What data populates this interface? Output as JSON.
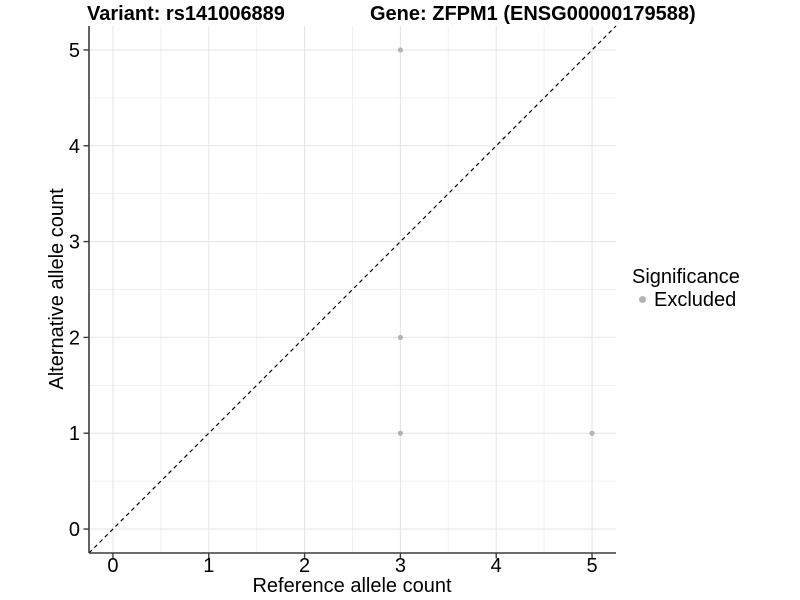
{
  "chart_data": {
    "type": "scatter",
    "title_left": "Variant: rs141006889",
    "title_right": "Gene: ZFPM1 (ENSG00000179588)",
    "xlabel": "Reference allele count",
    "ylabel": "Alternative allele count",
    "xlim": [
      -0.25,
      5.25
    ],
    "ylim": [
      -0.25,
      5.25
    ],
    "x_ticks": [
      0,
      1,
      2,
      3,
      4,
      5
    ],
    "y_ticks": [
      0,
      1,
      2,
      3,
      4,
      5
    ],
    "grid": "major and minor gridlines, light gray on white panel",
    "legend_position": "right",
    "series": [
      {
        "name": "Excluded",
        "color": "#b4b4b4",
        "marker": "circle",
        "points": [
          [
            3,
            5
          ],
          [
            3,
            2
          ],
          [
            3,
            1
          ],
          [
            5,
            1
          ]
        ]
      }
    ],
    "reference_line": {
      "type": "identity y = x",
      "slope": 1,
      "intercept": 0,
      "linetype": "dashed",
      "color": "#000000"
    },
    "legend": {
      "title": "Significance",
      "items": [
        {
          "label": "Excluded",
          "color": "#b4b4b4"
        }
      ]
    }
  },
  "colors": {
    "background": "#ffffff",
    "grid_major": "#e4e4e4",
    "grid_minor": "#f1f1f1",
    "axis_line": "#3c3c3c",
    "tick_mark": "#3c3c3c",
    "text": "#000000",
    "point": "#b4b4b4"
  }
}
